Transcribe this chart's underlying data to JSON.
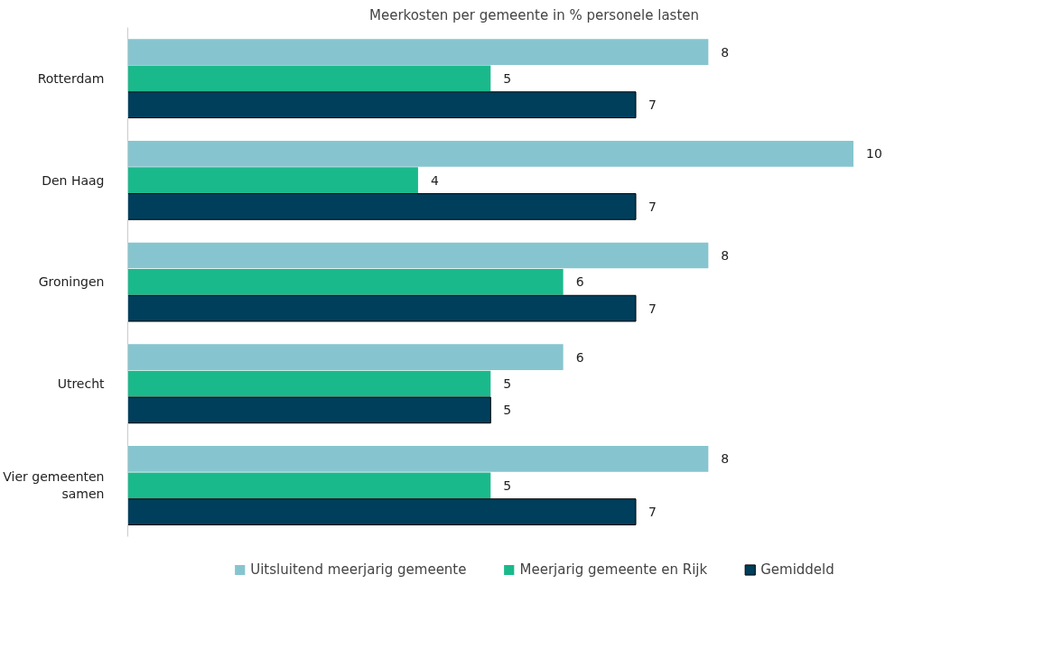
{
  "chart_data": {
    "type": "bar",
    "orientation": "horizontal",
    "title": "Meerkosten per gemeente in % personele lasten",
    "categories": [
      "Rotterdam",
      "Den Haag",
      "Groningen",
      "Utrecht",
      "Vier gemeenten samen"
    ],
    "series": [
      {
        "name": "Uitsluitend meerjarig gemeente",
        "color": "#86c5cf",
        "values": [
          8,
          10,
          8,
          6,
          8
        ]
      },
      {
        "name": "Meerjarig gemeente en Rijk",
        "color": "#1ab98c",
        "values": [
          5,
          4,
          6,
          5,
          5
        ]
      },
      {
        "name": "Gemiddeld",
        "color": "#003f5c",
        "values": [
          7,
          7,
          7,
          5,
          7
        ]
      }
    ],
    "data_labels": true,
    "legend": "bottom",
    "grid": false,
    "tick_labels": "y"
  }
}
